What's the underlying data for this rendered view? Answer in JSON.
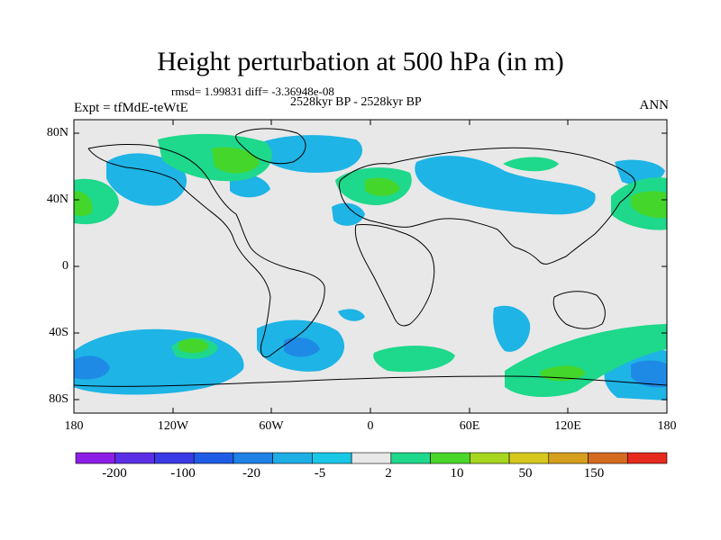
{
  "title": "Height perturbation at 500 hPa (in m)",
  "stats": "rmsd= 1.99831 diff= -3.36948e-08",
  "period": "2528kyr BP - 2528kyr BP",
  "experiment": "Expt = tfMdE-teWtE",
  "season": "ANN",
  "axes": {
    "lat_ticks": [
      "80N",
      "40N",
      "0",
      "40S",
      "80S"
    ],
    "lon_ticks": [
      "180",
      "120W",
      "60W",
      "0",
      "60E",
      "120E",
      "180"
    ]
  },
  "colorbar": {
    "colors": [
      "#8c1fe6",
      "#5b2fe6",
      "#3a3ae6",
      "#1f5ce6",
      "#1e82e6",
      "#1eaee6",
      "#19c8e6",
      "#e8e8e8",
      "#1ed88c",
      "#4ad62a",
      "#a6d61e",
      "#d6c81e",
      "#d6a01e",
      "#d66a1e",
      "#e62a1e"
    ],
    "labels": [
      "-200",
      "-100",
      "-20",
      "-5",
      "2",
      "10",
      "50",
      "150"
    ]
  },
  "colors": {
    "background": "#e8e8e8",
    "negative": "#1eb4e6",
    "negative_strong": "#1e8ae6",
    "positive": "#1ed88c",
    "positive_strong": "#44d62a"
  }
}
